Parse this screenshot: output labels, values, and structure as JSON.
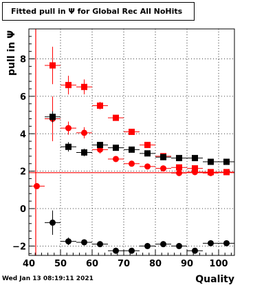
{
  "title": "Fitted pull in Ψ  for Global Rec All NoHits",
  "timestamp": "Wed Jan 13 08:19:11 2021",
  "chart_data": {
    "type": "scatter",
    "title": "Fitted pull in Ψ  for Global Rec All NoHits",
    "xlabel": "Quality",
    "ylabel": "pull in  Ψ",
    "xlim": [
      40,
      105
    ],
    "ylim": [
      -2.5,
      9.6
    ],
    "grid": true,
    "x_ticks": [
      40,
      50,
      60,
      70,
      80,
      90,
      100
    ],
    "y_ticks": [
      -2,
      0,
      2,
      4,
      6,
      8
    ],
    "y_highlight_line": 1.92,
    "series": [
      {
        "marker": "square",
        "color": "#ff0000",
        "points": [
          {
            "x": 47.5,
            "y": 7.65,
            "yerr": 1.0
          },
          {
            "x": 52.5,
            "y": 6.6,
            "yerr": 0.5
          },
          {
            "x": 57.5,
            "y": 6.5,
            "yerr": 0.4
          },
          {
            "x": 62.5,
            "y": 5.5,
            "yerr": 0.2
          },
          {
            "x": 67.5,
            "y": 4.85,
            "yerr": 0.15
          },
          {
            "x": 72.5,
            "y": 4.1,
            "yerr": 0.1
          },
          {
            "x": 77.5,
            "y": 3.4,
            "yerr": 0.1
          },
          {
            "x": 82.5,
            "y": 2.8,
            "yerr": 0.08
          },
          {
            "x": 87.5,
            "y": 2.2,
            "yerr": 0.06
          },
          {
            "x": 92.5,
            "y": 2.15,
            "yerr": 0.05
          },
          {
            "x": 97.5,
            "y": 1.95,
            "yerr": 0.05
          },
          {
            "x": 102.5,
            "y": 1.95,
            "yerr": 0.05
          }
        ]
      },
      {
        "marker": "circle",
        "color": "#ff0000",
        "points": [
          {
            "x": 42.5,
            "y": 1.2,
            "yerr": 0.0
          },
          {
            "x": 47.5,
            "y": 4.8,
            "yerr": 1.2
          },
          {
            "x": 52.5,
            "y": 4.3,
            "yerr": 0.35
          },
          {
            "x": 57.5,
            "y": 4.05,
            "yerr": 0.3
          },
          {
            "x": 62.5,
            "y": 3.15,
            "yerr": 0.2
          },
          {
            "x": 67.5,
            "y": 2.65,
            "yerr": 0.1
          },
          {
            "x": 72.5,
            "y": 2.4,
            "yerr": 0.08
          },
          {
            "x": 77.5,
            "y": 2.25,
            "yerr": 0.06
          },
          {
            "x": 82.5,
            "y": 2.15,
            "yerr": 0.05
          },
          {
            "x": 87.5,
            "y": 1.9,
            "yerr": 0.05
          },
          {
            "x": 92.5,
            "y": 1.95,
            "yerr": 0.05
          },
          {
            "x": 97.5,
            "y": 1.9,
            "yerr": 0.05
          },
          {
            "x": 102.5,
            "y": 1.95,
            "yerr": 0.05
          }
        ]
      },
      {
        "marker": "square",
        "color": "#000000",
        "points": [
          {
            "x": 47.5,
            "y": 4.9,
            "yerr": 0.3
          },
          {
            "x": 52.5,
            "y": 3.3,
            "yerr": 0.25
          },
          {
            "x": 57.5,
            "y": 3.0,
            "yerr": 0.2
          },
          {
            "x": 62.5,
            "y": 3.4,
            "yerr": 0.15
          },
          {
            "x": 67.5,
            "y": 3.25,
            "yerr": 0.1
          },
          {
            "x": 72.5,
            "y": 3.15,
            "yerr": 0.1
          },
          {
            "x": 77.5,
            "y": 2.95,
            "yerr": 0.08
          },
          {
            "x": 82.5,
            "y": 2.75,
            "yerr": 0.06
          },
          {
            "x": 87.5,
            "y": 2.7,
            "yerr": 0.05
          },
          {
            "x": 92.5,
            "y": 2.7,
            "yerr": 0.05
          },
          {
            "x": 97.5,
            "y": 2.5,
            "yerr": 0.05
          },
          {
            "x": 102.5,
            "y": 2.5,
            "yerr": 0.05
          }
        ]
      },
      {
        "marker": "circle",
        "color": "#000000",
        "points": [
          {
            "x": 47.5,
            "y": -0.75,
            "yerr": 0.65
          },
          {
            "x": 52.5,
            "y": -1.75,
            "yerr": 0.2
          },
          {
            "x": 57.5,
            "y": -1.8,
            "yerr": 0.15
          },
          {
            "x": 62.5,
            "y": -1.9,
            "yerr": 0.12
          },
          {
            "x": 67.5,
            "y": -2.25,
            "yerr": 0.1
          },
          {
            "x": 72.5,
            "y": -2.25,
            "yerr": 0.08
          },
          {
            "x": 77.5,
            "y": -2.0,
            "yerr": 0.06
          },
          {
            "x": 82.5,
            "y": -1.9,
            "yerr": 0.05
          },
          {
            "x": 87.5,
            "y": -2.0,
            "yerr": 0.05
          },
          {
            "x": 92.5,
            "y": -2.25,
            "yerr": 0.05
          },
          {
            "x": 97.5,
            "y": -1.85,
            "yerr": 0.05
          },
          {
            "x": 102.5,
            "y": -1.85,
            "yerr": 0.05
          }
        ]
      }
    ]
  }
}
